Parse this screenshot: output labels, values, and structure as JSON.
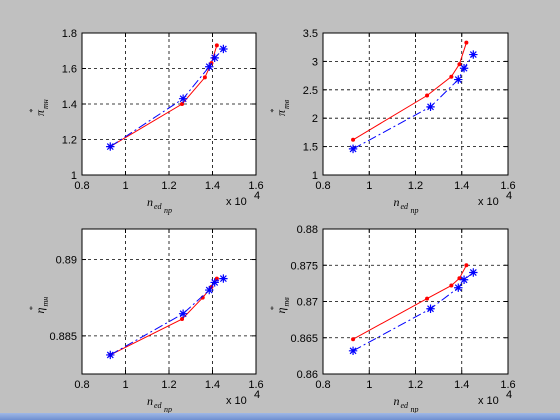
{
  "chart_data": [
    {
      "type": "line",
      "xlim": [
        0.8,
        1.6
      ],
      "ylim": [
        1,
        1.8
      ],
      "xticks": [
        "0.8",
        "1",
        "1.2",
        "1.4",
        "1.6"
      ],
      "yticks": [
        "1",
        "1.2",
        "1.4",
        "1.6",
        "1.8"
      ],
      "x_multiplier": "x 10",
      "x_exponent": "4",
      "xlabel": "n",
      "xlabel_sub": "ed",
      "xlabel_sub2": "np",
      "ylabel": "π",
      "ylabel_sup": "*",
      "ylabel_sub": "тн",
      "grid": true,
      "series": [
        {
          "color": "#ff0000",
          "style": "solid",
          "marker": "dot",
          "x": [
            0.93,
            1.26,
            1.365,
            1.395,
            1.42
          ],
          "y": [
            1.16,
            1.4,
            1.55,
            1.63,
            1.73
          ]
        },
        {
          "color": "#0000ff",
          "style": "dashdot",
          "marker": "star",
          "x": [
            0.93,
            1.265,
            1.385,
            1.41,
            1.45
          ],
          "y": [
            1.16,
            1.43,
            1.61,
            1.66,
            1.71
          ]
        }
      ]
    },
    {
      "type": "line",
      "xlim": [
        0.8,
        1.6
      ],
      "ylim": [
        1,
        3.5
      ],
      "xticks": [
        "0.8",
        "1",
        "1.2",
        "1.4",
        "1.6"
      ],
      "yticks": [
        "1",
        "1.5",
        "2",
        "2.5",
        "3",
        "3.5"
      ],
      "x_multiplier": "x 10",
      "x_exponent": "4",
      "xlabel": "n",
      "xlabel_sub": "ed",
      "xlabel_sub2": "np",
      "ylabel": "π",
      "ylabel_sup": "*",
      "ylabel_sub": "тв",
      "grid": true,
      "series": [
        {
          "color": "#ff0000",
          "style": "solid",
          "marker": "dot",
          "x": [
            0.93,
            1.25,
            1.355,
            1.39,
            1.42
          ],
          "y": [
            1.62,
            2.4,
            2.73,
            2.95,
            3.33
          ]
        },
        {
          "color": "#0000ff",
          "style": "dashdot",
          "marker": "star",
          "x": [
            0.93,
            1.265,
            1.385,
            1.41,
            1.45
          ],
          "y": [
            1.46,
            2.2,
            2.68,
            2.88,
            3.12
          ]
        }
      ]
    },
    {
      "type": "line",
      "xlim": [
        0.8,
        1.6
      ],
      "ylim": [
        0.8825,
        0.892
      ],
      "xticks": [
        "0.8",
        "1",
        "1.2",
        "1.4",
        "1.6"
      ],
      "yticks": [
        "0.885",
        "0.89"
      ],
      "ytick_values": [
        0.885,
        0.89
      ],
      "x_multiplier": "x 10",
      "x_exponent": "4",
      "xlabel": "n",
      "xlabel_sub": "ed",
      "xlabel_sub2": "np",
      "ylabel": "η",
      "ylabel_sup": "*",
      "ylabel_sub": "тн",
      "grid": true,
      "series": [
        {
          "color": "#ff0000",
          "style": "solid",
          "marker": "dot",
          "x": [
            0.93,
            1.26,
            1.355,
            1.395,
            1.42
          ],
          "y": [
            0.88375,
            0.8861,
            0.8875,
            0.8882,
            0.88875
          ]
        },
        {
          "color": "#0000ff",
          "style": "dashdot",
          "marker": "star",
          "x": [
            0.93,
            1.265,
            1.385,
            1.41,
            1.45
          ],
          "y": [
            0.88375,
            0.88645,
            0.888,
            0.8885,
            0.88875
          ]
        }
      ]
    },
    {
      "type": "line",
      "xlim": [
        0.8,
        1.6
      ],
      "ylim": [
        0.86,
        0.88
      ],
      "xticks": [
        "0.8",
        "1",
        "1.2",
        "1.4",
        "1.6"
      ],
      "yticks": [
        "0.86",
        "0.865",
        "0.87",
        "0.875",
        "0.88"
      ],
      "x_multiplier": "x 10",
      "x_exponent": "4",
      "xlabel": "n",
      "xlabel_sub": "ed",
      "xlabel_sub2": "np",
      "ylabel": "η",
      "ylabel_sup": "*",
      "ylabel_sub": "тв",
      "grid": true,
      "series": [
        {
          "color": "#ff0000",
          "style": "solid",
          "marker": "dot",
          "x": [
            0.93,
            1.25,
            1.355,
            1.39,
            1.42
          ],
          "y": [
            0.8648,
            0.8704,
            0.8722,
            0.8732,
            0.875
          ]
        },
        {
          "color": "#0000ff",
          "style": "dashdot",
          "marker": "star",
          "x": [
            0.93,
            1.265,
            1.385,
            1.41,
            1.45
          ],
          "y": [
            0.8632,
            0.869,
            0.8719,
            0.873,
            0.874
          ]
        }
      ]
    }
  ]
}
